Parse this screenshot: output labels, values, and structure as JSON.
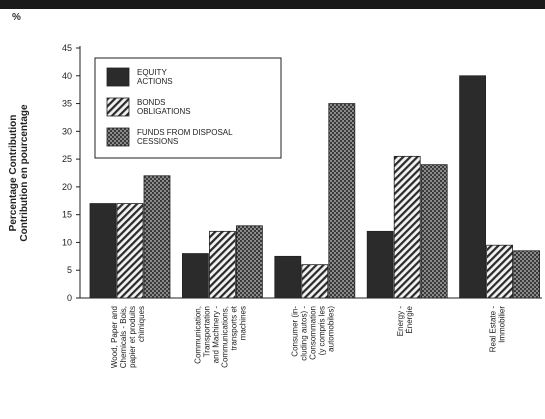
{
  "unit_label": "%",
  "chart_data": {
    "type": "bar",
    "ylabel": [
      "Percentage Contribution",
      "Contribution en pourcentage"
    ],
    "ylim": [
      0,
      45
    ],
    "yticks": [
      0,
      5,
      10,
      15,
      20,
      25,
      30,
      35,
      40,
      45
    ],
    "grid": false,
    "legend_position": "top-left",
    "categories": [
      [
        "Wood, Paper and",
        "Chemicals - Bois,",
        "papier et produits",
        "chimiques"
      ],
      [
        "Communication,",
        "Transportation",
        "and Machinery -",
        "Communications,",
        "transports et",
        "machines"
      ],
      [
        "Consumer (in-",
        "cluding autos) -",
        "Consommation",
        "(y compris les",
        "automobiles)"
      ],
      [
        "Energy -",
        "Énergie"
      ],
      [
        "Real Estate -",
        "Immobilier"
      ]
    ],
    "series": [
      {
        "name": [
          "EQUITY",
          "ACTIONS"
        ],
        "values": [
          17,
          8,
          7.5,
          12,
          40
        ],
        "color": "#2b2b2b",
        "pattern": "solid"
      },
      {
        "name": [
          "BONDS",
          "OBLIGATIONS"
        ],
        "values": [
          17,
          12,
          6,
          25.5,
          9.5
        ],
        "color": "#333333",
        "pattern": "diag"
      },
      {
        "name": [
          "FUNDS FROM DISPOSAL",
          "CESSIONS"
        ],
        "values": [
          22,
          13,
          35,
          24,
          8.5
        ],
        "color": "#555555",
        "pattern": "cross"
      }
    ]
  }
}
